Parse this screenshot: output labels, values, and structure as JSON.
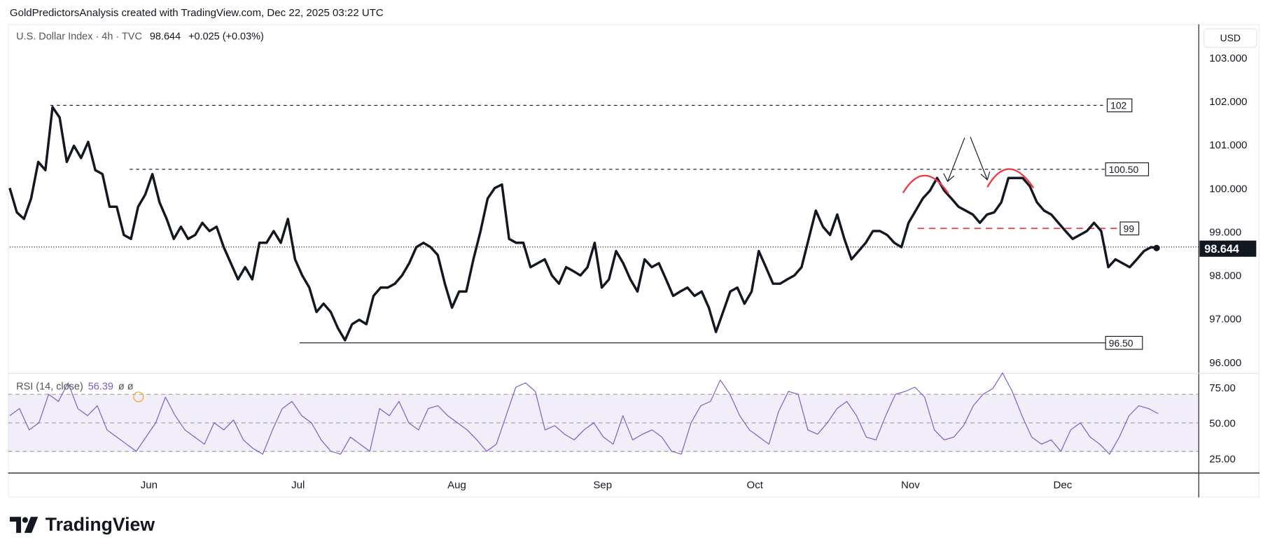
{
  "header": {
    "attribution": "GoldPredictorsAnalysis created with TradingView.com, Dec 22, 2025 03:22 UTC"
  },
  "legend": {
    "symbol": "U.S. Dollar Index · 4h · TVC",
    "last": "98.644",
    "change": "+0.025 (+0.03%)"
  },
  "rsi_legend": {
    "label": "RSI (14, close)",
    "value": "56.39",
    "extra": "ø ø"
  },
  "currency_button": "USD",
  "last_price_tag": "98.644",
  "logo_text": "TradingView",
  "colors": {
    "price_line": "#131722",
    "rsi_line": "#7e57c2",
    "annotation_red": "#f23645",
    "rsi_band": "#7e57c2"
  },
  "chart_data": [
    {
      "type": "line",
      "title": "U.S. Dollar Index · 4h · TVC",
      "ylabel": "USD",
      "ylim": [
        96,
        103
      ],
      "yticks": [
        "103.000",
        "102.000",
        "101.000",
        "100.000",
        "99.000",
        "98.000",
        "97.000",
        "96.000"
      ],
      "ytick_values": [
        103,
        102,
        101,
        100,
        99,
        98,
        97,
        96
      ],
      "xticks": [
        "Jun",
        "Jul",
        "Aug",
        "Sep",
        "Oct",
        "Nov",
        "Dec"
      ],
      "xrange": [
        "May 4",
        "Dec 20"
      ],
      "last_price": 98.644,
      "series": [
        {
          "name": "DXY",
          "values": [
            100.0,
            99.44,
            99.29,
            99.76,
            100.6,
            100.41,
            101.86,
            101.62,
            100.6,
            100.97,
            100.69,
            101.06,
            100.41,
            100.32,
            99.57,
            99.57,
            98.92,
            98.83,
            99.57,
            99.85,
            100.32,
            99.67,
            99.29,
            98.83,
            99.11,
            98.83,
            98.92,
            99.2,
            99.01,
            99.11,
            98.64,
            98.27,
            97.9,
            98.18,
            97.9,
            98.74,
            98.74,
            99.01,
            98.74,
            99.29,
            98.36,
            97.99,
            97.71,
            97.15,
            97.34,
            97.15,
            96.78,
            96.5,
            96.87,
            96.97,
            96.87,
            97.52,
            97.71,
            97.71,
            97.8,
            97.99,
            98.27,
            98.64,
            98.74,
            98.64,
            98.46,
            97.8,
            97.25,
            97.62,
            97.62,
            98.36,
            99.01,
            99.76,
            100.0,
            100.08,
            98.83,
            98.74,
            98.74,
            98.18,
            98.27,
            98.36,
            97.99,
            97.8,
            98.18,
            98.09,
            97.99,
            98.18,
            98.74,
            97.71,
            97.9,
            98.55,
            98.27,
            97.9,
            97.62,
            98.36,
            98.18,
            98.27,
            97.9,
            97.52,
            97.62,
            97.71,
            97.52,
            97.62,
            97.25,
            96.69,
            97.15,
            97.62,
            97.71,
            97.34,
            97.62,
            98.55,
            98.18,
            97.8,
            97.8,
            97.9,
            97.99,
            98.18,
            98.83,
            99.48,
            99.11,
            98.92,
            99.39,
            98.83,
            98.36,
            98.55,
            98.74,
            99.01,
            99.01,
            98.92,
            98.74,
            98.64,
            99.2,
            99.48,
            99.76,
            99.94,
            100.23,
            99.94,
            99.76,
            99.57,
            99.48,
            99.39,
            99.2,
            99.39,
            99.44,
            99.67,
            100.23,
            100.23,
            100.23,
            100.04,
            99.67,
            99.48,
            99.39,
            99.2,
            99.01,
            98.83,
            98.92,
            99.01,
            99.2,
            99.01,
            98.18,
            98.36,
            98.27,
            98.18,
            98.36,
            98.55,
            98.64,
            98.62
          ]
        }
      ],
      "annotations": [
        {
          "label": "102",
          "price": 101.9,
          "style": "dashed"
        },
        {
          "label": "100.50",
          "price": 100.43,
          "style": "dashed"
        },
        {
          "label": "99",
          "price": 99.07,
          "style": "dashed-red"
        },
        {
          "label": "96.50",
          "price": 96.44,
          "style": "solid"
        }
      ]
    },
    {
      "type": "line",
      "title": "RSI (14, close)",
      "ylim": [
        20,
        85
      ],
      "yticks": [
        "75.00",
        "50.00",
        "25.00"
      ],
      "ytick_values": [
        75,
        50,
        25
      ],
      "band": [
        30,
        70
      ],
      "series": [
        {
          "name": "RSI",
          "values": [
            55,
            60,
            45,
            50,
            70,
            65,
            78,
            60,
            55,
            62,
            45,
            40,
            35,
            30,
            40,
            50,
            68,
            55,
            45,
            40,
            35,
            50,
            45,
            52,
            38,
            32,
            28,
            45,
            60,
            65,
            55,
            50,
            38,
            30,
            28,
            40,
            35,
            30,
            60,
            55,
            65,
            50,
            45,
            60,
            62,
            55,
            50,
            45,
            38,
            30,
            35,
            55,
            75,
            78,
            72,
            45,
            48,
            42,
            38,
            45,
            50,
            40,
            35,
            55,
            38,
            42,
            45,
            40,
            30,
            28,
            50,
            62,
            65,
            80,
            70,
            55,
            45,
            40,
            35,
            58,
            72,
            70,
            45,
            42,
            50,
            60,
            65,
            55,
            40,
            38,
            55,
            70,
            72,
            75,
            68,
            45,
            38,
            40,
            48,
            62,
            70,
            74,
            85,
            72,
            55,
            40,
            35,
            38,
            30,
            45,
            50,
            40,
            35,
            28,
            40,
            55,
            62,
            60,
            56.39
          ]
        }
      ]
    }
  ]
}
